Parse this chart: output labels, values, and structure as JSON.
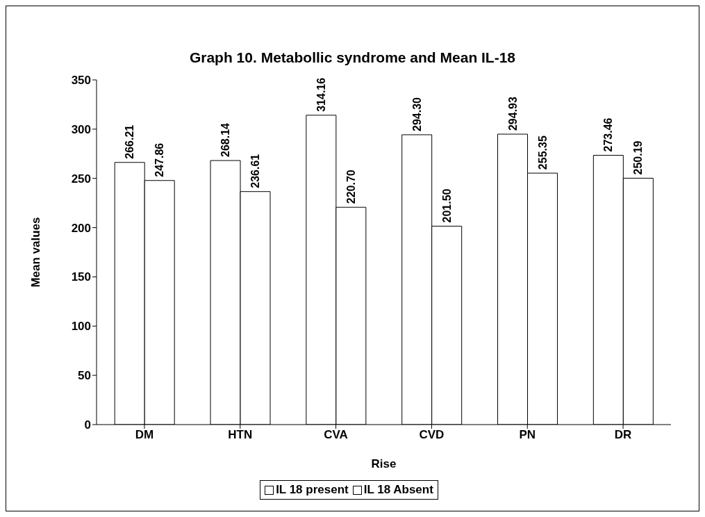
{
  "chart_data": {
    "type": "bar",
    "title": "Graph 10. Metabollic syndrome and Mean IL-18",
    "xlabel": "Rise",
    "ylabel": "Mean values",
    "categories": [
      "DM",
      "HTN",
      "CVA",
      "CVD",
      "PN",
      "DR"
    ],
    "series": [
      {
        "name": "IL 18 present",
        "color": "#ffffff",
        "values": [
          266.21,
          268.14,
          314.16,
          294.3,
          294.93,
          273.46
        ],
        "value_labels": [
          "266.21",
          "268.14",
          "314.16",
          "294.30",
          "294.93",
          "273.46"
        ]
      },
      {
        "name": "IL 18 Absent",
        "color": "#ffffff",
        "values": [
          247.86,
          236.61,
          220.7,
          201.5,
          255.35,
          250.19
        ],
        "value_labels": [
          "247.86",
          "236.61",
          "220.70",
          "201.50",
          "255.35",
          "250.19"
        ]
      }
    ],
    "ylim": [
      0,
      350
    ],
    "yticks": [
      0,
      50,
      100,
      150,
      200,
      250,
      300,
      350
    ],
    "grid": false,
    "legend": "bottom"
  }
}
